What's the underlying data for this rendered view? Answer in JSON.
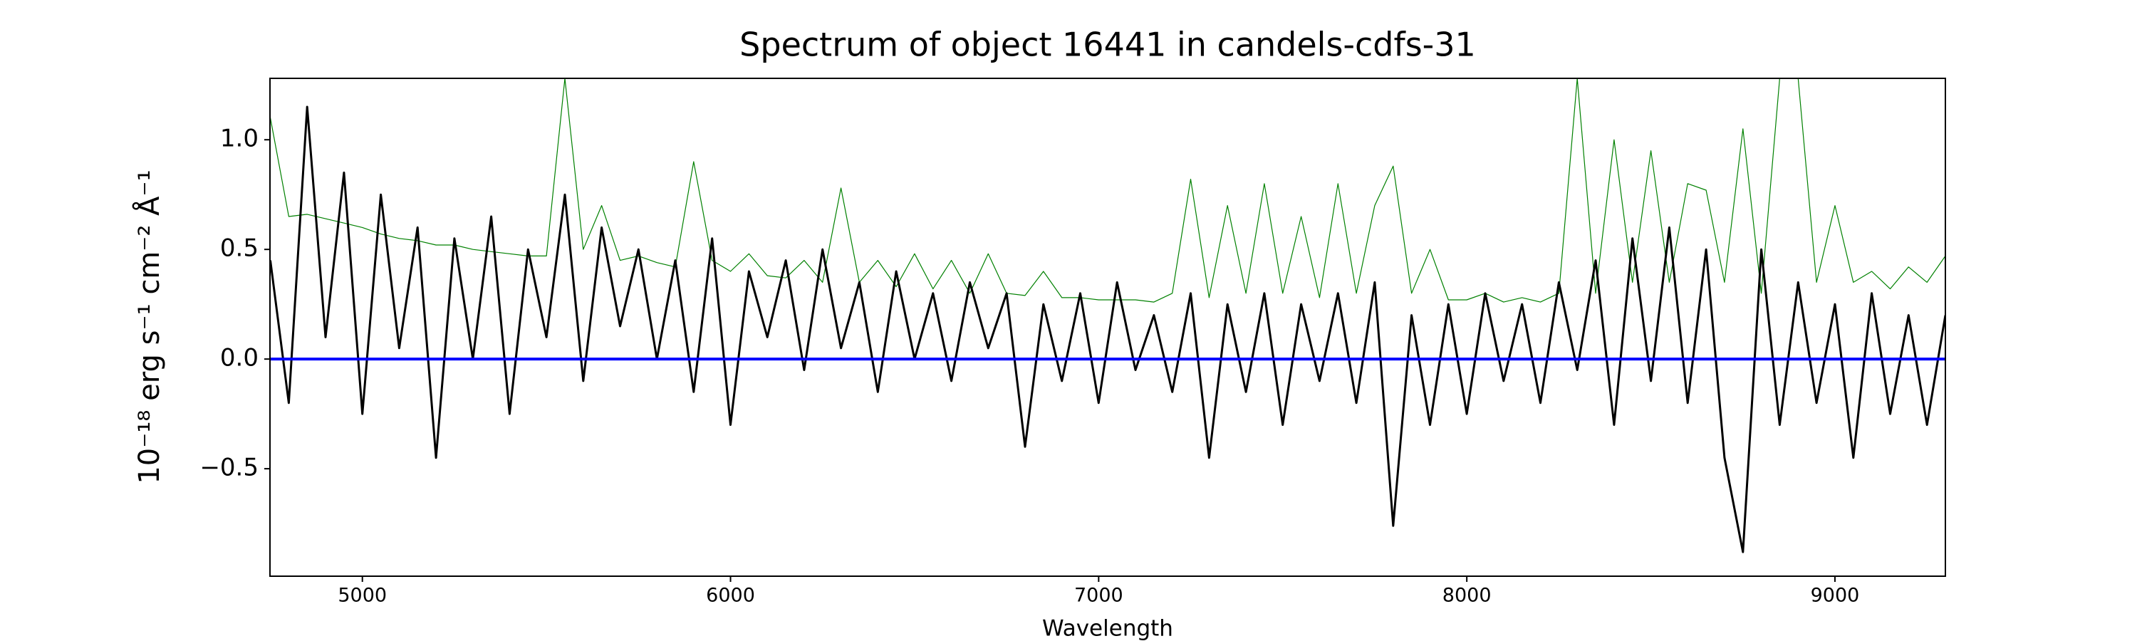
{
  "chart_data": {
    "type": "line",
    "title": "Spectrum of object 16441 in candels-cdfs-31",
    "x_label": "Wavelength",
    "y_label": "10⁻¹⁸ erg s⁻¹ cm⁻² Å⁻¹",
    "xlim": [
      4749,
      9300
    ],
    "ylim": [
      -0.99,
      1.28
    ],
    "xticks": [
      5000,
      6000,
      7000,
      8000,
      9000
    ],
    "yticks": [
      {
        "value": -0.5,
        "label": "−0.5"
      },
      {
        "value": 0,
        "label": "0.0"
      },
      {
        "value": 0.5,
        "label": "0.5"
      },
      {
        "value": 1,
        "label": "1.0"
      }
    ],
    "x": [
      4750,
      4800,
      4850,
      4900,
      4950,
      5000,
      5050,
      5100,
      5150,
      5200,
      5250,
      5300,
      5350,
      5400,
      5450,
      5500,
      5550,
      5600,
      5650,
      5700,
      5750,
      5800,
      5850,
      5900,
      5950,
      6000,
      6050,
      6100,
      6150,
      6200,
      6250,
      6300,
      6350,
      6400,
      6450,
      6500,
      6550,
      6600,
      6650,
      6700,
      6750,
      6800,
      6850,
      6900,
      6950,
      7000,
      7050,
      7100,
      7150,
      7200,
      7250,
      7300,
      7350,
      7400,
      7450,
      7500,
      7550,
      7600,
      7650,
      7700,
      7750,
      7800,
      7850,
      7900,
      7950,
      8000,
      8050,
      8100,
      8150,
      8200,
      8250,
      8300,
      8350,
      8400,
      8450,
      8500,
      8550,
      8600,
      8650,
      8700,
      8750,
      8800,
      8850,
      8900,
      8950,
      9000,
      9050,
      9100,
      9150,
      9200,
      9250,
      9300
    ],
    "series": [
      {
        "color": "#008000",
        "width": 1.2,
        "values": [
          1.1,
          0.65,
          0.66,
          0.64,
          0.62,
          0.6,
          0.57,
          0.55,
          0.54,
          0.52,
          0.52,
          0.5,
          0.49,
          0.48,
          0.47,
          0.47,
          1.28,
          0.5,
          0.7,
          0.45,
          0.47,
          0.44,
          0.42,
          0.9,
          0.45,
          0.4,
          0.48,
          0.38,
          0.37,
          0.45,
          0.35,
          0.78,
          0.35,
          0.45,
          0.33,
          0.48,
          0.32,
          0.45,
          0.3,
          0.48,
          0.3,
          0.29,
          0.4,
          0.28,
          0.28,
          0.27,
          0.27,
          0.27,
          0.26,
          0.3,
          0.82,
          0.28,
          0.7,
          0.3,
          0.8,
          0.3,
          0.65,
          0.28,
          0.8,
          0.3,
          0.7,
          0.88,
          0.3,
          0.5,
          0.27,
          0.27,
          0.3,
          0.26,
          0.28,
          0.26,
          0.3,
          1.28,
          0.3,
          1.0,
          0.35,
          0.95,
          0.35,
          0.8,
          0.77,
          0.35,
          1.05,
          0.3,
          1.28,
          1.28,
          0.35,
          0.7,
          0.35,
          0.4,
          0.32,
          0.42,
          0.35,
          0.47
        ]
      },
      {
        "color": "#000000",
        "width": 3,
        "values": [
          0.45,
          -0.2,
          1.15,
          0.1,
          0.85,
          -0.25,
          0.75,
          0.05,
          0.6,
          -0.45,
          0.55,
          0.0,
          0.65,
          -0.25,
          0.5,
          0.1,
          0.75,
          -0.1,
          0.6,
          0.15,
          0.5,
          0.0,
          0.45,
          -0.15,
          0.55,
          -0.3,
          0.4,
          0.1,
          0.45,
          -0.05,
          0.5,
          0.05,
          0.35,
          -0.15,
          0.4,
          0.0,
          0.3,
          -0.1,
          0.35,
          0.05,
          0.3,
          -0.4,
          0.25,
          -0.1,
          0.3,
          -0.2,
          0.35,
          -0.05,
          0.2,
          -0.15,
          0.3,
          -0.45,
          0.25,
          -0.15,
          0.3,
          -0.3,
          0.25,
          -0.1,
          0.3,
          -0.2,
          0.35,
          -0.76,
          0.2,
          -0.3,
          0.25,
          -0.25,
          0.3,
          -0.1,
          0.25,
          -0.2,
          0.35,
          -0.05,
          0.45,
          -0.3,
          0.55,
          -0.1,
          0.6,
          -0.2,
          0.5,
          -0.45,
          -0.88,
          0.5,
          -0.3,
          0.35,
          -0.2,
          0.25,
          -0.45,
          0.3,
          -0.25,
          0.2,
          -0.3,
          0.2
        ]
      },
      {
        "color": "#0000ff",
        "width": 4,
        "values": [
          0,
          0,
          0,
          0,
          0,
          0,
          0,
          0,
          0,
          0,
          0,
          0,
          0,
          0,
          0,
          0,
          0,
          0,
          0,
          0,
          0,
          0,
          0,
          0,
          0,
          0,
          0,
          0,
          0,
          0,
          0,
          0,
          0,
          0,
          0,
          0,
          0,
          0,
          0,
          0,
          0,
          0,
          0,
          0,
          0,
          0,
          0,
          0,
          0,
          0,
          0,
          0,
          0,
          0,
          0,
          0,
          0,
          0,
          0,
          0,
          0,
          0,
          0,
          0,
          0,
          0,
          0,
          0,
          0,
          0,
          0,
          0,
          0,
          0,
          0,
          0,
          0,
          0,
          0,
          0,
          0,
          0,
          0,
          0,
          0,
          0,
          0,
          0,
          0,
          0,
          0,
          0
        ]
      }
    ]
  }
}
